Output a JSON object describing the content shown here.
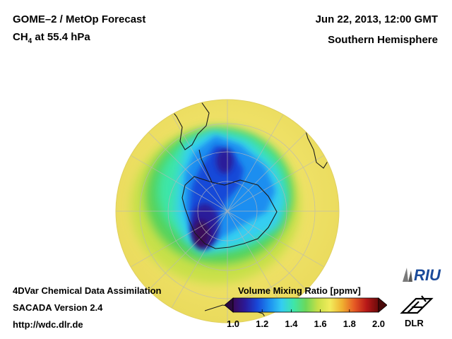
{
  "header": {
    "title": "GOME–2 / MetOp Forecast",
    "species_main": "CH",
    "species_sub": "4",
    "species_rest": " at 55.4 hPa",
    "datetime": "Jun 22, 2013, 12:00 GMT",
    "region": "Southern Hemisphere"
  },
  "footer": {
    "line1": "4DVar Chemical Data Assimilation",
    "line2": "SACADA Version 2.4",
    "line3": "http://wdc.dlr.de"
  },
  "colorbar": {
    "title": "Volume Mixing Ratio [ppmv]",
    "min": 1.0,
    "max": 2.0,
    "ticks": [
      "1.0",
      "1.2",
      "1.4",
      "1.6",
      "1.8",
      "2.0"
    ],
    "tick_values": [
      1.0,
      1.2,
      1.4,
      1.6,
      1.8,
      2.0
    ],
    "colors": [
      "#3a0a5a",
      "#2a1a9a",
      "#1848d8",
      "#1c8ef0",
      "#34cdf2",
      "#3ee6a8",
      "#6cd85a",
      "#c8e048",
      "#f2ec5c",
      "#f0b030",
      "#e65a24",
      "#b81818",
      "#6a0a0a"
    ]
  },
  "logos": {
    "riu": "RIU",
    "dlr": "DLR"
  },
  "colors": {
    "background": "#ffffff",
    "globe_base": "#f3e76a",
    "ocean_outline": "#ffffff"
  }
}
